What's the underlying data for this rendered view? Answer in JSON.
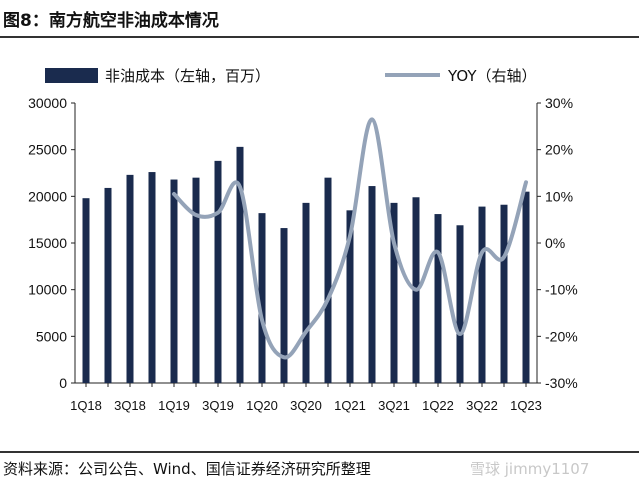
{
  "header": {
    "title": "图8：南方航空非油成本情况"
  },
  "footer": {
    "source": "资料来源：公司公告、Wind、国信证券经济研究所整理",
    "watermark": "雪球 jimmy1107"
  },
  "colors": {
    "bar": "#1a2b4e",
    "line": "#94a3b8",
    "text": "#111111"
  },
  "chart_data": {
    "type": "bar",
    "categories": [
      "1Q18",
      "2Q18",
      "3Q18",
      "4Q18",
      "1Q19",
      "2Q19",
      "3Q19",
      "4Q19",
      "1Q20",
      "2Q20",
      "3Q20",
      "4Q20",
      "1Q21",
      "2Q21",
      "3Q21",
      "4Q21",
      "1Q22",
      "2Q22",
      "3Q22",
      "4Q22",
      "1Q23"
    ],
    "xtick_labels": [
      "1Q18",
      "",
      "3Q18",
      "",
      "1Q19",
      "",
      "3Q19",
      "",
      "1Q20",
      "",
      "3Q20",
      "",
      "1Q21",
      "",
      "3Q21",
      "",
      "1Q22",
      "",
      "3Q22",
      "",
      "1Q23"
    ],
    "series": [
      {
        "name": "非油成本（左轴，百万）",
        "type": "bar",
        "axis": "left",
        "values": [
          19800,
          20900,
          22300,
          22600,
          21800,
          22000,
          23800,
          25300,
          18200,
          16600,
          19300,
          22000,
          18500,
          21100,
          19300,
          19900,
          18100,
          16900,
          18900,
          19100,
          20500
        ]
      },
      {
        "name": "YOY（右轴）",
        "type": "line",
        "axis": "right",
        "values": [
          null,
          null,
          null,
          null,
          10.5,
          6.0,
          6.5,
          12.0,
          -16.5,
          -24.5,
          -19.0,
          -12.0,
          1.5,
          26.5,
          0.0,
          -10.0,
          -2.0,
          -19.5,
          -2.0,
          -3.0,
          13.0
        ]
      }
    ],
    "left_axis": {
      "ylim": [
        0,
        30000
      ],
      "ticks": [
        0,
        5000,
        10000,
        15000,
        20000,
        25000,
        30000
      ]
    },
    "right_axis": {
      "ylim": [
        -30,
        30
      ],
      "ticks": [
        "-30%",
        "-20%",
        "-10%",
        "0%",
        "10%",
        "20%",
        "30%"
      ]
    },
    "grid": false,
    "legend_position": "top"
  }
}
